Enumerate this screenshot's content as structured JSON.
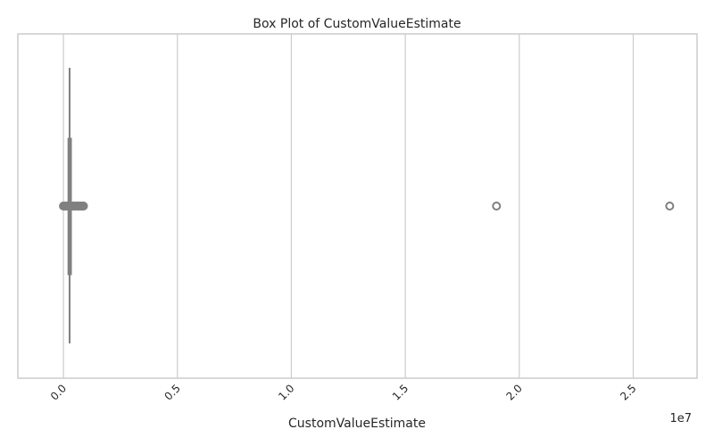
{
  "chart_data": {
    "type": "box",
    "title": "Box Plot of CustomValueEstimate",
    "xlabel": "CustomValueEstimate",
    "ylabel": "",
    "x_offset_label": "1e7",
    "x_scale_factor": 10000000,
    "xlim": [
      -0.2,
      2.78
    ],
    "x_ticks": [
      {
        "value": 0.0,
        "label": "0.0"
      },
      {
        "value": 0.5,
        "label": "0.5"
      },
      {
        "value": 1.0,
        "label": "1.0"
      },
      {
        "value": 1.5,
        "label": "1.5"
      },
      {
        "value": 2.0,
        "label": "2.0"
      },
      {
        "value": 2.5,
        "label": "2.5"
      }
    ],
    "grid": true,
    "orientation": "horizontal",
    "color": "#808080",
    "box": {
      "whisker_low": 0.0,
      "q1": 0.02,
      "median": 0.027,
      "q3": 0.035,
      "whisker_high": 0.08
    },
    "outliers": [
      0.082,
      0.085,
      0.088,
      1.9,
      2.66
    ]
  }
}
